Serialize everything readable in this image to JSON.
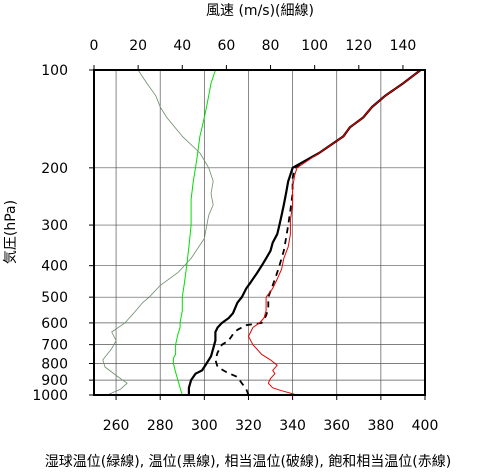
{
  "chart_data": {
    "type": "line",
    "title": "",
    "top_axis": {
      "label": "風速 (m/s)(細線)",
      "range": [
        0,
        150
      ],
      "ticks": [
        0,
        20,
        40,
        60,
        80,
        100,
        120,
        140
      ]
    },
    "bottom_axis": {
      "label": "湿球温位(緑線), 温位(黒線), 相当温位(破線), 飽和相当温位(赤線)",
      "range": [
        250,
        400
      ],
      "ticks": [
        260,
        280,
        300,
        320,
        340,
        360,
        380,
        400
      ]
    },
    "y_axis": {
      "label": "気圧(hPa)",
      "scale": "log",
      "inverted": true,
      "range": [
        100,
        1000
      ],
      "ticks": [
        100,
        200,
        300,
        400,
        500,
        600,
        700,
        800,
        900,
        1000
      ]
    },
    "grid": true,
    "series": [
      {
        "name": "湿球温位(緑線)",
        "axis": "bottom",
        "color": "#00e000",
        "points": [
          [
            290,
            1000
          ],
          [
            289,
            950
          ],
          [
            288,
            900
          ],
          [
            287,
            850
          ],
          [
            286,
            800
          ],
          [
            286,
            770
          ],
          [
            287,
            750
          ],
          [
            287,
            700
          ],
          [
            288,
            650
          ],
          [
            289,
            620
          ],
          [
            289,
            600
          ],
          [
            290,
            550
          ],
          [
            290,
            500
          ],
          [
            291,
            450
          ],
          [
            292,
            400
          ],
          [
            293,
            350
          ],
          [
            294,
            300
          ],
          [
            294,
            250
          ],
          [
            295,
            220
          ],
          [
            296,
            200
          ],
          [
            297,
            180
          ],
          [
            298,
            160
          ],
          [
            299,
            150
          ],
          [
            300,
            140
          ],
          [
            301,
            130
          ],
          [
            302,
            120
          ],
          [
            303,
            110
          ],
          [
            305,
            100
          ]
        ]
      },
      {
        "name": "温位(黒線)",
        "axis": "bottom",
        "color": "#000000",
        "points": [
          [
            293,
            1000
          ],
          [
            293,
            950
          ],
          [
            294,
            900
          ],
          [
            296,
            860
          ],
          [
            299,
            840
          ],
          [
            301,
            800
          ],
          [
            303,
            760
          ],
          [
            304,
            720
          ],
          [
            305,
            680
          ],
          [
            305,
            640
          ],
          [
            306,
            620
          ],
          [
            308,
            600
          ],
          [
            311,
            580
          ],
          [
            313,
            560
          ],
          [
            315,
            520
          ],
          [
            317,
            500
          ],
          [
            319,
            470
          ],
          [
            321,
            450
          ],
          [
            324,
            420
          ],
          [
            326,
            400
          ],
          [
            328,
            380
          ],
          [
            330,
            360
          ],
          [
            331,
            340
          ],
          [
            333,
            320
          ],
          [
            334,
            300
          ],
          [
            335,
            280
          ],
          [
            336,
            260
          ],
          [
            337,
            240
          ],
          [
            338,
            220
          ],
          [
            339,
            210
          ],
          [
            340,
            200
          ],
          [
            352,
            180
          ],
          [
            363,
            160
          ],
          [
            366,
            150
          ],
          [
            372,
            140
          ],
          [
            376,
            130
          ],
          [
            382,
            120
          ],
          [
            390,
            110
          ],
          [
            398,
            100
          ]
        ]
      },
      {
        "name": "相当温位(破線)",
        "axis": "bottom",
        "color": "#000000",
        "dashed": true,
        "points": [
          [
            320,
            1000
          ],
          [
            319,
            960
          ],
          [
            317,
            920
          ],
          [
            315,
            880
          ],
          [
            310,
            850
          ],
          [
            306,
            820
          ],
          [
            305,
            780
          ],
          [
            306,
            740
          ],
          [
            308,
            700
          ],
          [
            311,
            680
          ],
          [
            313,
            650
          ],
          [
            315,
            630
          ],
          [
            319,
            610
          ],
          [
            326,
            600
          ],
          [
            328,
            570
          ],
          [
            329,
            540
          ],
          [
            329,
            500
          ],
          [
            331,
            460
          ],
          [
            333,
            420
          ],
          [
            334,
            400
          ],
          [
            336,
            360
          ],
          [
            337,
            330
          ],
          [
            338,
            300
          ],
          [
            339,
            270
          ],
          [
            340,
            240
          ],
          [
            340,
            215
          ],
          [
            341,
            200
          ],
          [
            352,
            180
          ],
          [
            363,
            160
          ],
          [
            366,
            150
          ],
          [
            372,
            140
          ],
          [
            376,
            130
          ],
          [
            382,
            120
          ],
          [
            390,
            110
          ],
          [
            398,
            100
          ]
        ]
      },
      {
        "name": "飽和相当温位(赤線)",
        "axis": "bottom",
        "color": "#ee0000",
        "points": [
          [
            342,
            1000
          ],
          [
            335,
            970
          ],
          [
            331,
            950
          ],
          [
            329,
            920
          ],
          [
            330,
            890
          ],
          [
            332,
            860
          ],
          [
            331,
            840
          ],
          [
            333,
            810
          ],
          [
            330,
            780
          ],
          [
            326,
            750
          ],
          [
            322,
            700
          ],
          [
            320,
            660
          ],
          [
            322,
            620
          ],
          [
            325,
            600
          ],
          [
            327,
            580
          ],
          [
            328,
            550
          ],
          [
            328,
            500
          ],
          [
            331,
            470
          ],
          [
            333,
            440
          ],
          [
            335,
            410
          ],
          [
            336,
            380
          ],
          [
            338,
            350
          ],
          [
            339,
            320
          ],
          [
            339,
            290
          ],
          [
            340,
            260
          ],
          [
            340,
            230
          ],
          [
            341,
            210
          ],
          [
            342,
            200
          ],
          [
            352,
            180
          ],
          [
            363,
            160
          ],
          [
            366,
            150
          ],
          [
            372,
            140
          ],
          [
            376,
            130
          ],
          [
            382,
            120
          ],
          [
            390,
            110
          ],
          [
            398,
            100
          ]
        ]
      },
      {
        "name": "風速(細線)",
        "axis": "top",
        "color": "#6b8e6b",
        "points": [
          [
            6,
            1000
          ],
          [
            12,
            960
          ],
          [
            15,
            920
          ],
          [
            11,
            880
          ],
          [
            5,
            820
          ],
          [
            4,
            780
          ],
          [
            8,
            720
          ],
          [
            10,
            680
          ],
          [
            8,
            640
          ],
          [
            14,
            600
          ],
          [
            18,
            560
          ],
          [
            22,
            520
          ],
          [
            25,
            500
          ],
          [
            30,
            460
          ],
          [
            38,
            420
          ],
          [
            44,
            380
          ],
          [
            50,
            330
          ],
          [
            52,
            280
          ],
          [
            54,
            260
          ],
          [
            53,
            240
          ],
          [
            54,
            220
          ],
          [
            52,
            200
          ],
          [
            48,
            180
          ],
          [
            40,
            160
          ],
          [
            33,
            140
          ],
          [
            30,
            130
          ],
          [
            28,
            120
          ],
          [
            24,
            110
          ],
          [
            20,
            100
          ]
        ]
      }
    ]
  }
}
